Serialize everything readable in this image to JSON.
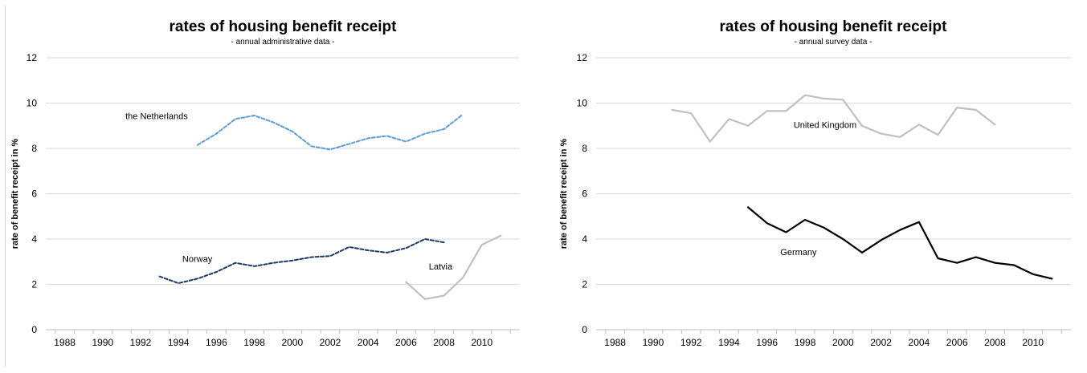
{
  "chart_data": [
    {
      "type": "line",
      "title": "rates of housing benefit receipt",
      "subtitle": "- annual administrative data -",
      "ylabel": "rate of benefit receipt in %",
      "xlabel": "",
      "xlim": [
        1987,
        2012
      ],
      "ylim": [
        0,
        12
      ],
      "x_ticks": [
        "1988",
        "1990",
        "1992",
        "1994",
        "1996",
        "1998",
        "2000",
        "2002",
        "2004",
        "2006",
        "2008",
        "2010"
      ],
      "y_ticks": [
        "0",
        "2",
        "4",
        "6",
        "8",
        "10",
        "12"
      ],
      "grid": true,
      "series": [
        {
          "name": "the Netherlands",
          "color": "#5b9bd5",
          "dash": true,
          "x": [
            1995,
            1996,
            1997,
            1998,
            1999,
            2000,
            2001,
            2002,
            2003,
            2004,
            2005,
            2006,
            2007,
            2008,
            2009
          ],
          "values": [
            8.15,
            8.65,
            9.3,
            9.45,
            9.15,
            8.75,
            8.1,
            7.95,
            8.2,
            8.45,
            8.55,
            8.3,
            8.65,
            8.85,
            9.5
          ]
        },
        {
          "name": "Norway",
          "color": "#1f3864",
          "dash": true,
          "x": [
            1993,
            1994,
            1995,
            1996,
            1997,
            1998,
            1999,
            2000,
            2001,
            2002,
            2003,
            2004,
            2005,
            2006,
            2007,
            2008
          ],
          "values": [
            2.35,
            2.05,
            2.25,
            2.55,
            2.95,
            2.8,
            2.95,
            3.05,
            3.2,
            3.25,
            3.65,
            3.5,
            3.4,
            3.6,
            4.0,
            3.85
          ]
        },
        {
          "name": "Latvia",
          "color": "#c0c0c0",
          "dash": false,
          "x": [
            2006,
            2007,
            2008,
            2009,
            2010,
            2011
          ],
          "values": [
            2.1,
            1.35,
            1.5,
            2.3,
            3.75,
            4.15
          ]
        }
      ],
      "annotations": [
        {
          "text": "the Netherlands",
          "x": 1991.2,
          "y": 9.3
        },
        {
          "text": "Norway",
          "x": 1994.2,
          "y": 3.0
        },
        {
          "text": "Latvia",
          "x": 2007.2,
          "y": 2.65
        }
      ]
    },
    {
      "type": "line",
      "title": "rates of housing benefit receipt",
      "subtitle": "- annual survey data -",
      "ylabel": "rate of benefit receipt in %",
      "xlabel": "",
      "xlim": [
        1987,
        2012
      ],
      "ylim": [
        0,
        12
      ],
      "x_ticks": [
        "1988",
        "1990",
        "1992",
        "1994",
        "1996",
        "1998",
        "2000",
        "2002",
        "2004",
        "2006",
        "2008",
        "2010"
      ],
      "y_ticks": [
        "0",
        "2",
        "4",
        "6",
        "8",
        "10",
        "12"
      ],
      "grid": true,
      "series": [
        {
          "name": "United Kingdom",
          "color": "#c0c0c0",
          "dash": false,
          "x": [
            1991,
            1992,
            1993,
            1994,
            1995,
            1996,
            1997,
            1998,
            1999,
            2000,
            2001,
            2002,
            2003,
            2004,
            2005,
            2006,
            2007,
            2008
          ],
          "values": [
            9.7,
            9.55,
            8.3,
            9.3,
            9.0,
            9.65,
            9.65,
            10.35,
            10.2,
            10.15,
            9.0,
            8.65,
            8.5,
            9.05,
            8.6,
            9.8,
            9.7,
            9.05
          ]
        },
        {
          "name": "Germany",
          "color": "#000000",
          "dash": false,
          "x": [
            1995,
            1996,
            1997,
            1998,
            1999,
            2000,
            2001,
            2002,
            2003,
            2004,
            2005,
            2006,
            2007,
            2008,
            2009,
            2010,
            2011
          ],
          "values": [
            5.4,
            4.7,
            4.3,
            4.85,
            4.5,
            4.0,
            3.4,
            3.95,
            4.4,
            4.75,
            3.15,
            2.95,
            3.2,
            2.95,
            2.85,
            2.45,
            2.25
          ]
        }
      ],
      "annotations": [
        {
          "text": "United Kingdom",
          "x": 1997.4,
          "y": 8.9
        },
        {
          "text": "Germany",
          "x": 1996.7,
          "y": 3.3
        }
      ]
    }
  ]
}
